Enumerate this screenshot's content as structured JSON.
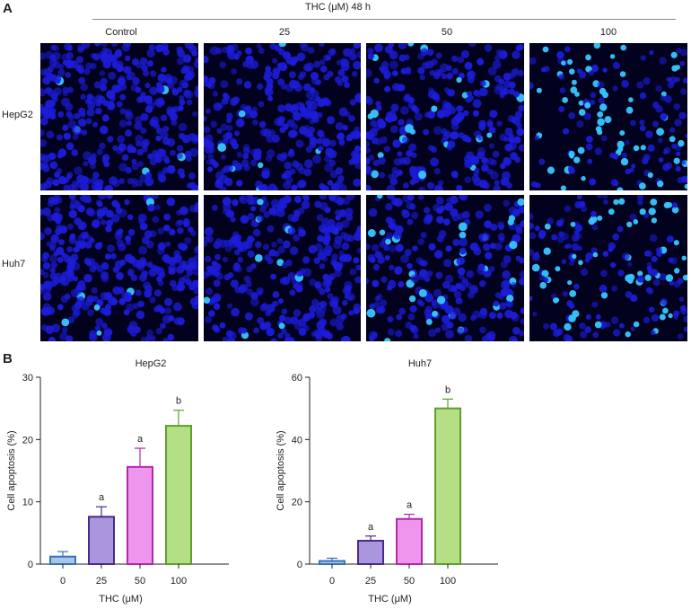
{
  "panel_a": {
    "letter": "A",
    "header": "THC (μM) 48 h",
    "columns": [
      "Control",
      "25",
      "50",
      "100"
    ],
    "rows": [
      "HepG2",
      "Huh7"
    ]
  },
  "panel_b": {
    "letter": "B"
  },
  "colors": {
    "micrograph_background": "#02021e",
    "nuclei": "#1c1cd8",
    "bright_nuclei": "#37c6ff",
    "bar_fills": [
      "#a9c6e6",
      "#a996dc",
      "#ee96ee",
      "#b4df86"
    ],
    "bar_strokes": [
      "#3a72b8",
      "#4a2a8c",
      "#b02aa8",
      "#5fa02a"
    ]
  },
  "chart_data": [
    {
      "type": "bar",
      "title": "HepG2",
      "xlabel": "THC (μM)",
      "ylabel": "Cell apoptosis (%)",
      "categories": [
        "0",
        "25",
        "50",
        "100"
      ],
      "values": [
        1.2,
        7.6,
        15.6,
        22.2
      ],
      "errors": [
        0.8,
        1.6,
        3.0,
        2.5
      ],
      "annotations": [
        "",
        "a",
        "a",
        "b"
      ],
      "ylim": [
        0,
        30
      ],
      "yticks": [
        "0",
        "10",
        "20",
        "30"
      ],
      "grid": false
    },
    {
      "type": "bar",
      "title": "Huh7",
      "xlabel": "THC (μM)",
      "ylabel": "Cell apoptosis (%)",
      "categories": [
        "0",
        "25",
        "50",
        "100"
      ],
      "values": [
        1.0,
        7.5,
        14.5,
        50.0
      ],
      "errors": [
        0.9,
        1.5,
        1.5,
        3.0
      ],
      "annotations": [
        "",
        "a",
        "a",
        "b"
      ],
      "ylim": [
        0,
        60
      ],
      "yticks": [
        "0",
        "20",
        "40",
        "60"
      ],
      "grid": false
    }
  ]
}
